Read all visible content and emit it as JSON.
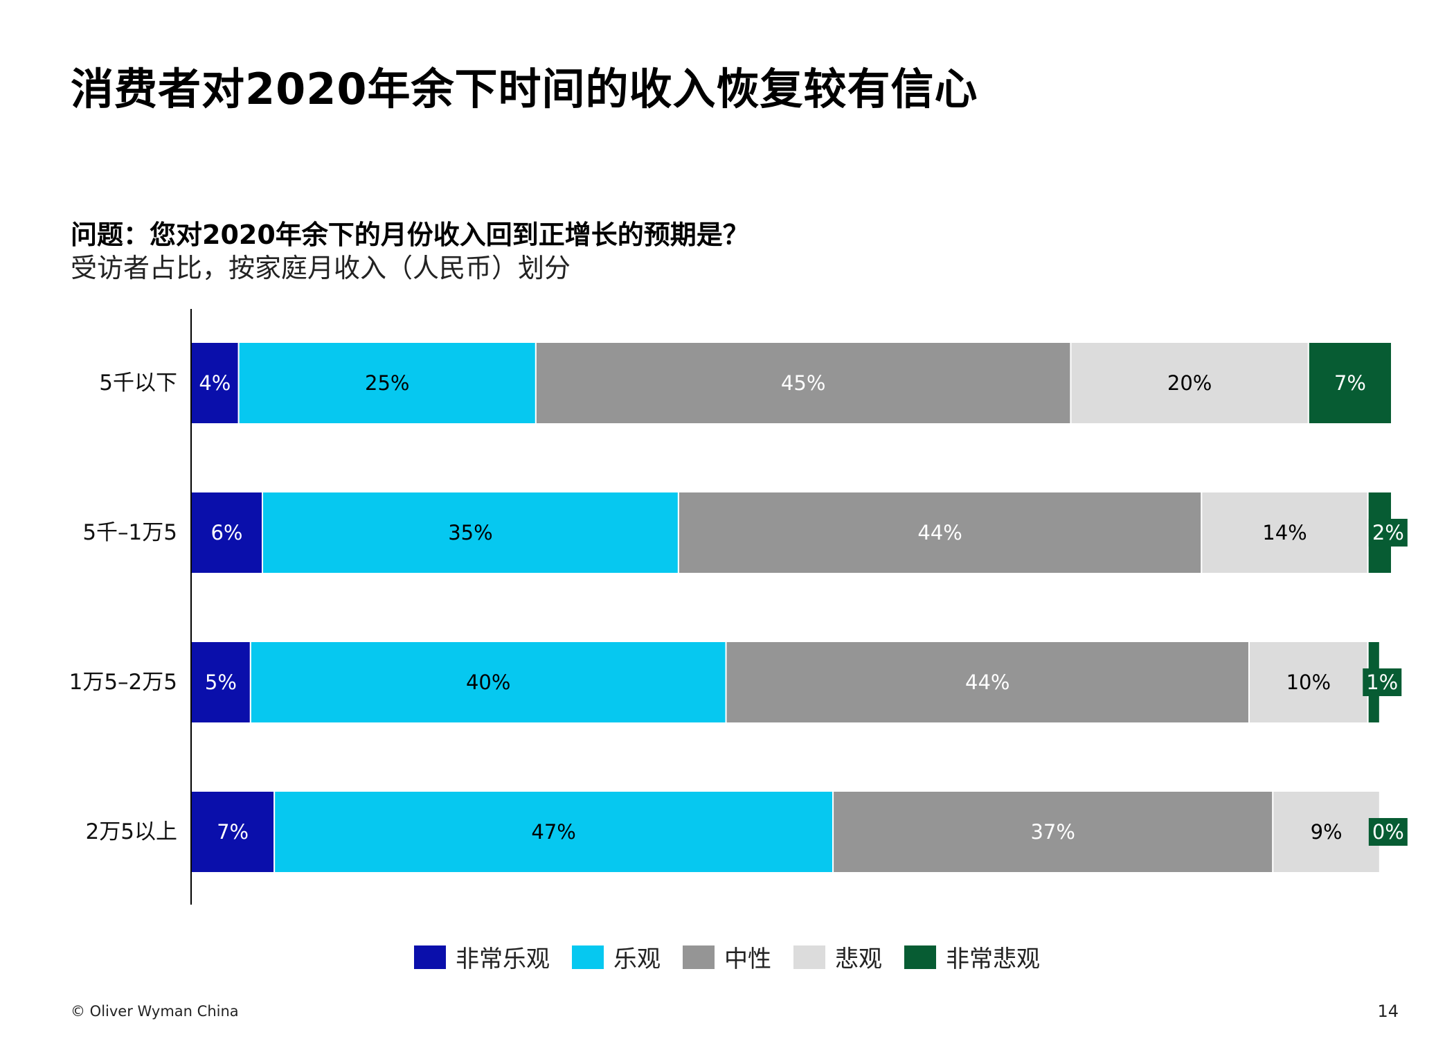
{
  "title": "消费者对2020年余下时间的收入恢复较有信心",
  "question": "问题：您对2020年余下的月份收入回到正增长的预期是？",
  "subtitle": "受访者占比，按家庭月收入（人民币）划分",
  "footer": "© Oliver Wyman China",
  "page_number": "14",
  "chart_data": {
    "type": "bar",
    "orientation": "horizontal",
    "stacked": true,
    "categories": [
      "5千以下",
      "5千–1万5",
      "1万5–2万5",
      "2万5以上"
    ],
    "series": [
      {
        "name": "非常乐观",
        "color": "#0a0fab",
        "label_color": "#ffffff",
        "values": [
          4,
          6,
          5,
          7
        ]
      },
      {
        "name": "乐观",
        "color": "#06c8f0",
        "label_color": "#000000",
        "values": [
          25,
          35,
          40,
          47
        ]
      },
      {
        "name": "中性",
        "color": "#959595",
        "label_color": "#ffffff",
        "values": [
          45,
          44,
          44,
          37
        ]
      },
      {
        "name": "悲观",
        "color": "#dcdcdc",
        "label_color": "#000000",
        "values": [
          20,
          14,
          10,
          9
        ]
      },
      {
        "name": "非常悲观",
        "color": "#075c33",
        "label_color": "#ffffff",
        "values": [
          7,
          2,
          1,
          0
        ]
      }
    ],
    "value_suffix": "%",
    "xlim": [
      0,
      101
    ],
    "legend_position": "bottom",
    "grid": false
  }
}
